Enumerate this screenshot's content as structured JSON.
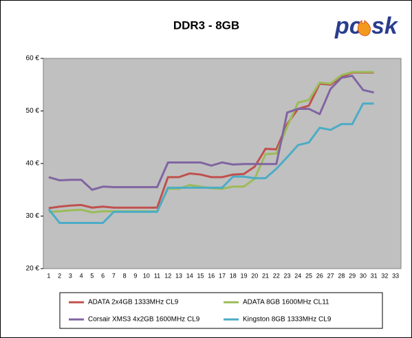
{
  "chart_data": {
    "type": "line",
    "title": "DDR3 - 8GB",
    "logo": [
      "pc",
      "sk"
    ],
    "categories": [
      "1",
      "2",
      "3",
      "4",
      "5",
      "6",
      "7",
      "8",
      "9",
      "10",
      "11",
      "12",
      "13",
      "14",
      "15",
      "16",
      "17",
      "18",
      "19",
      "20",
      "21",
      "22",
      "23",
      "24",
      "25",
      "26",
      "27",
      "28",
      "29",
      "30",
      "31",
      "32",
      "33"
    ],
    "series": [
      {
        "name": "ADATA 2x4GB 1333MHz CL9",
        "color": "#c0504d",
        "values": [
          31.5,
          31.8,
          32,
          32.1,
          31.6,
          31.8,
          31.6,
          31.6,
          31.6,
          31.6,
          31.6,
          37.4,
          37.4,
          38.1,
          37.9,
          37.4,
          37.4,
          37.9,
          38,
          39.4,
          42.8,
          42.7,
          47.5,
          50.4,
          51,
          55.2,
          55,
          56.5,
          57.3,
          57.3,
          57.3,
          null,
          null
        ]
      },
      {
        "name": "ADATA 8GB 1600MHz CL11",
        "color": "#9bbb59",
        "values": [
          30.8,
          30.9,
          31.1,
          31.2,
          30.7,
          30.9,
          30.9,
          30.9,
          30.9,
          30.9,
          30.9,
          35.2,
          35.2,
          35.9,
          35.6,
          35.3,
          35.2,
          35.6,
          35.6,
          37.1,
          41.8,
          41.9,
          47,
          51.6,
          52.1,
          55.4,
          55.2,
          56.8,
          57.4,
          57.4,
          57.4,
          null,
          null
        ]
      },
      {
        "name": "Corsair XMS3 4x2GB 1600MHz CL9",
        "color": "#8064a2",
        "values": [
          37.4,
          36.8,
          36.9,
          36.9,
          35,
          35.6,
          35.5,
          35.5,
          35.5,
          35.5,
          35.5,
          40.2,
          40.2,
          40.2,
          40.2,
          39.6,
          40.2,
          39.8,
          39.9,
          39.9,
          39.9,
          39.9,
          49.7,
          50.4,
          50.4,
          49.4,
          54.2,
          56.3,
          56.7,
          54,
          53.5,
          null,
          null
        ]
      },
      {
        "name": "Kingston 8GB 1333MHz CL9",
        "color": "#4bacc6",
        "values": [
          31.3,
          28.7,
          28.7,
          28.7,
          28.7,
          28.7,
          30.8,
          30.8,
          30.8,
          30.8,
          30.8,
          35.4,
          35.4,
          35.4,
          35.4,
          35.4,
          35.4,
          37.5,
          37.5,
          37.2,
          37.2,
          39,
          41.2,
          43.5,
          44,
          46.8,
          46.4,
          47.5,
          47.5,
          51.4,
          51.4,
          null,
          null
        ]
      }
    ],
    "ylim": [
      20,
      60
    ],
    "yticks": [
      {
        "value": 20,
        "label": "20 €"
      },
      {
        "value": 30,
        "label": "30 €"
      },
      {
        "value": 40,
        "label": "40 €"
      },
      {
        "value": 50,
        "label": "50 €"
      },
      {
        "value": 60,
        "label": "60 €"
      }
    ],
    "grid": false,
    "legend": "bottom"
  }
}
